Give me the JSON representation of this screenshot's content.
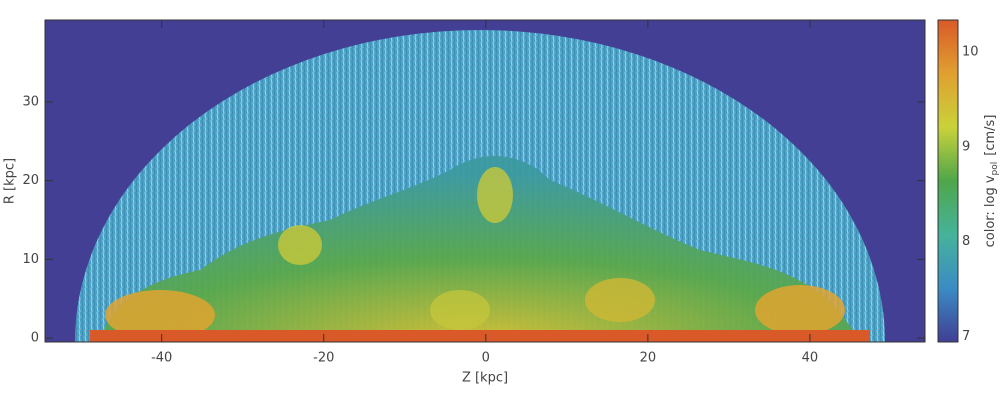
{
  "chart_data": {
    "type": "image",
    "xlabel": "Z  [kpc]",
    "ylabel": "R  [kpc]",
    "xlim": [
      -54.4,
      54.2
    ],
    "xticks": [
      -40,
      -20,
      0,
      20,
      40
    ],
    "ylim": [
      -0.5,
      40.4
    ],
    "yticks": [
      0,
      10,
      20,
      30
    ],
    "colorbar": {
      "label": "color: log v",
      "label_subscript": "pol",
      "label_unit": "[cm/s]",
      "clim": [
        6.94,
        10.34
      ],
      "ticks": [
        7,
        8,
        9,
        10
      ],
      "colormap": [
        "#3f3f94",
        "#3a8cc4",
        "#45b39a",
        "#4fa64a",
        "#c9d23a",
        "#e0a030",
        "#d95a28"
      ]
    }
  }
}
